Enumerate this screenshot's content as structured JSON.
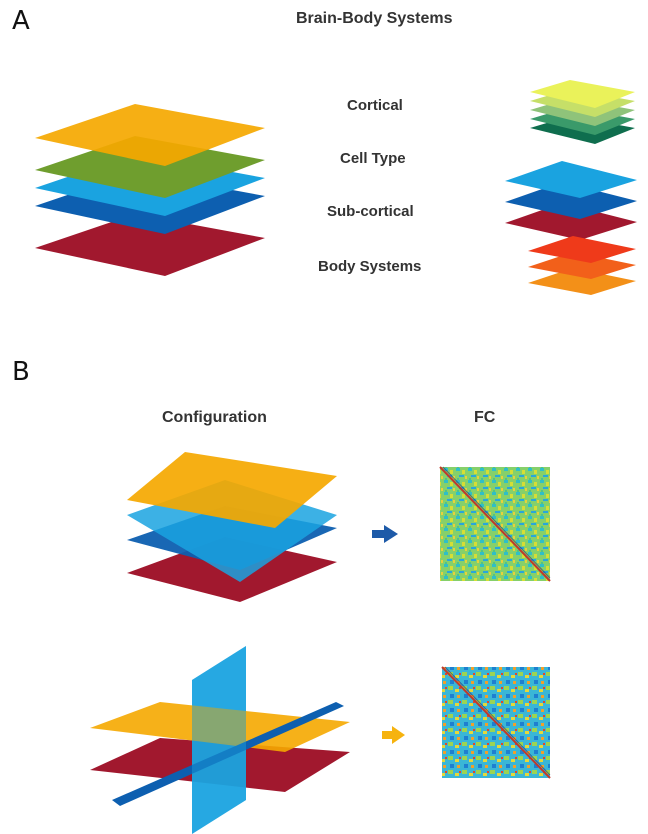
{
  "panels": {
    "a": {
      "letter": "A",
      "title": "Brain-Body Systems",
      "layers": [
        "Cortical",
        "Cell Type",
        "Sub-cortical",
        "Body Systems"
      ]
    },
    "b": {
      "letter": "B",
      "col_config": "Configuration",
      "col_fc": "FC"
    }
  },
  "colors": {
    "cortical": "#f5a800",
    "cell_type": "#6f9e2e",
    "sub_light": "#1aa3e0",
    "sub_dark": "#0d5fb0",
    "body": "#a1182e",
    "cortical_stack": [
      "#eaf25a",
      "#c6df68",
      "#8fc37a",
      "#3a9a6a",
      "#0f6e4e"
    ],
    "body_stack": [
      "#ef3a1a",
      "#f2601a",
      "#f39018"
    ],
    "arrow_top": "#1d5aa8",
    "arrow_bottom": "#f6b30f"
  }
}
